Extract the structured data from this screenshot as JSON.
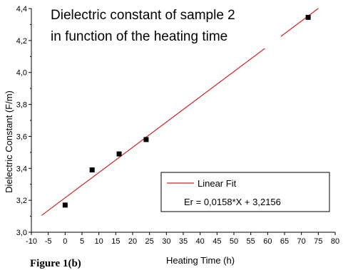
{
  "chart_data": {
    "type": "scatter",
    "title_lines": [
      "Dielectric constant of sample 2",
      "in function of the heating time"
    ],
    "xlabel": "Heating Time (h)",
    "ylabel": "Dielectric Constant (F/m)",
    "xlim": [
      -10,
      80
    ],
    "ylim": [
      3.0,
      4.4
    ],
    "x_ticks": [
      "-10",
      "-5",
      "0",
      "5",
      "10",
      "15",
      "20",
      "25",
      "30",
      "35",
      "40",
      "45",
      "50",
      "55",
      "60",
      "65",
      "70",
      "75",
      "80"
    ],
    "y_ticks": [
      "3,0",
      "3,2",
      "3,4",
      "3,6",
      "3,8",
      "4,0",
      "4,2",
      "4,4"
    ],
    "series": [
      {
        "kind": "points",
        "x": [
          0,
          8,
          16,
          24,
          72
        ],
        "y": [
          3.17,
          3.39,
          3.49,
          3.58,
          4.345
        ],
        "color": "#000000"
      },
      {
        "kind": "fit",
        "name": "Linear Fit",
        "slope": 0.0158,
        "intercept": 3.2156,
        "x_range": [
          -7,
          75
        ],
        "color": "#d62020"
      }
    ],
    "legend": {
      "position": "bottom-right",
      "entries": [
        "Linear Fit",
        "Er = 0,0158*X + 3,2156"
      ]
    },
    "grid": false
  },
  "caption": "Figure 1(b)"
}
